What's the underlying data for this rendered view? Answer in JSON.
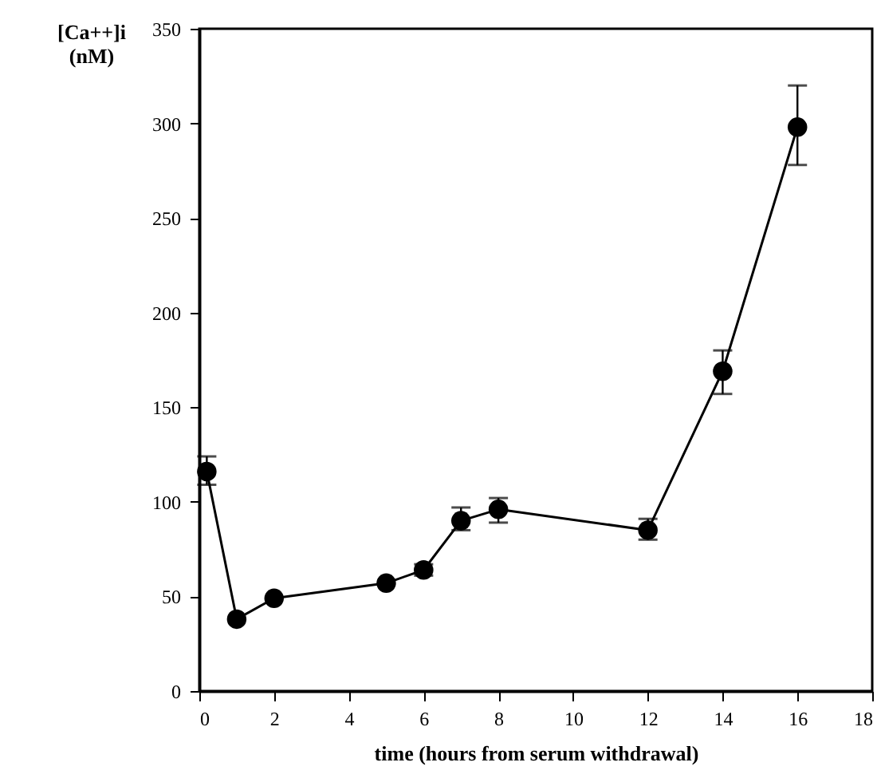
{
  "chart_data": {
    "type": "line",
    "xlabel": "time (hours from serum withdrawal)",
    "ylabel": "[Ca++]i (nM)",
    "x": [
      0.2,
      1,
      2,
      5,
      6,
      7,
      8,
      12,
      14,
      16
    ],
    "series": [
      {
        "color": "#000000",
        "values": [
          116,
          38,
          49,
          57,
          64,
          90,
          96,
          85,
          169,
          298
        ],
        "errors": [
          [
            109,
            124
          ],
          null,
          null,
          null,
          [
            61,
            67
          ],
          [
            85,
            97
          ],
          [
            89,
            102
          ],
          [
            80,
            91
          ],
          [
            157,
            180
          ],
          [
            278,
            320
          ]
        ]
      }
    ],
    "xlim": [
      0,
      18
    ],
    "xticks": [
      0,
      2,
      4,
      6,
      8,
      10,
      12,
      14,
      16,
      18
    ],
    "ylim": [
      0,
      350
    ],
    "yticks": [
      0,
      50,
      100,
      150,
      200,
      250,
      300,
      350
    ],
    "grid": false,
    "marker": "circle",
    "line_style": "solid"
  }
}
